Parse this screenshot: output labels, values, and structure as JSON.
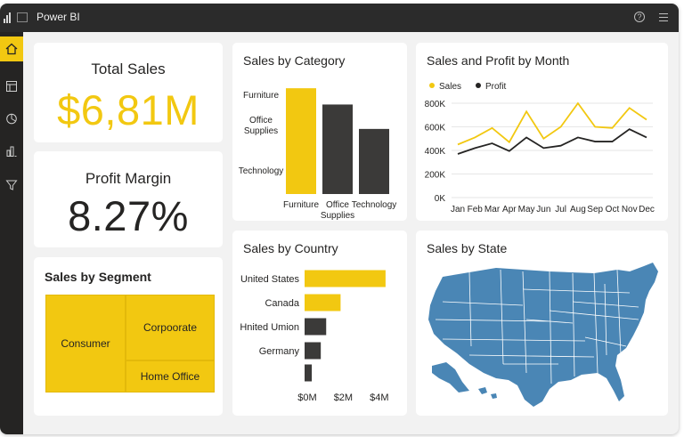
{
  "app": {
    "title": "Power BI"
  },
  "sidebar": {
    "items": [
      {
        "icon": "home-icon",
        "active": true
      },
      {
        "icon": "report-icon",
        "active": false
      },
      {
        "icon": "pie-icon",
        "active": false
      },
      {
        "icon": "chart-icon",
        "active": false
      },
      {
        "icon": "filter-icon",
        "active": false
      }
    ]
  },
  "kpis": {
    "total_sales": {
      "title": "Total Sales",
      "value": "$6,81M",
      "color": "#f2c811"
    },
    "profit_margin": {
      "title": "Profit Margin",
      "value": "8.27%",
      "color": "#252423"
    }
  },
  "segment": {
    "title": "Sales by Segment",
    "cells": [
      "Consumer",
      "Corpoorate",
      "Home Office"
    ]
  },
  "category_chart": {
    "title": "Sales by Category",
    "chart_data": {
      "type": "bar",
      "categories": [
        "Furniture",
        "Office Supplies",
        "Technology"
      ],
      "bottom_labels": [
        "Furniture",
        "Office\nSupplies",
        "Technology"
      ],
      "left_labels": [
        "Furniture",
        "Office\nSupplies",
        "Technology"
      ],
      "values": [
        2.6,
        2.2,
        1.6
      ],
      "colors": [
        "#f2c811",
        "#3b3a39",
        "#3b3a39"
      ],
      "ylim": [
        0,
        2.8
      ]
    }
  },
  "month_chart": {
    "title": "Sales and Profit by Month",
    "chart_data": {
      "type": "line",
      "categories": [
        "Jan",
        "Feb",
        "Mar",
        "Apr",
        "May",
        "Jun",
        "Jul",
        "Aug",
        "Sep",
        "Oct",
        "Nov",
        "Dec"
      ],
      "series": [
        {
          "name": "Sales",
          "color": "#f2c811",
          "values": [
            450000,
            510000,
            590000,
            470000,
            730000,
            500000,
            600000,
            800000,
            600000,
            590000,
            760000,
            660000
          ]
        },
        {
          "name": "Profit",
          "color": "#252423",
          "values": [
            370000,
            420000,
            460000,
            395000,
            510000,
            420000,
            440000,
            510000,
            475000,
            475000,
            580000,
            510000
          ]
        }
      ],
      "yticks": [
        "0K",
        "200K",
        "400K",
        "600K",
        "800K"
      ],
      "ylim": [
        0,
        800000
      ],
      "legend": "top-left"
    }
  },
  "country_chart": {
    "title": "Sales by Country",
    "chart_data": {
      "type": "bar",
      "orientation": "horizontal",
      "categories": [
        "United States",
        "Canada",
        "Hnited Umion",
        "Germany",
        ""
      ],
      "values": [
        4.5,
        2.0,
        1.2,
        0.9,
        0.4
      ],
      "colors": [
        "#f2c811",
        "#f2c811",
        "#3b3a39",
        "#3b3a39",
        "#3b3a39"
      ],
      "xticks": [
        "$0M",
        "$2M",
        "$4M"
      ],
      "xlim": [
        0,
        5
      ]
    }
  },
  "state_map": {
    "title": "Sales by State",
    "fill_color": "#4a86b5"
  }
}
